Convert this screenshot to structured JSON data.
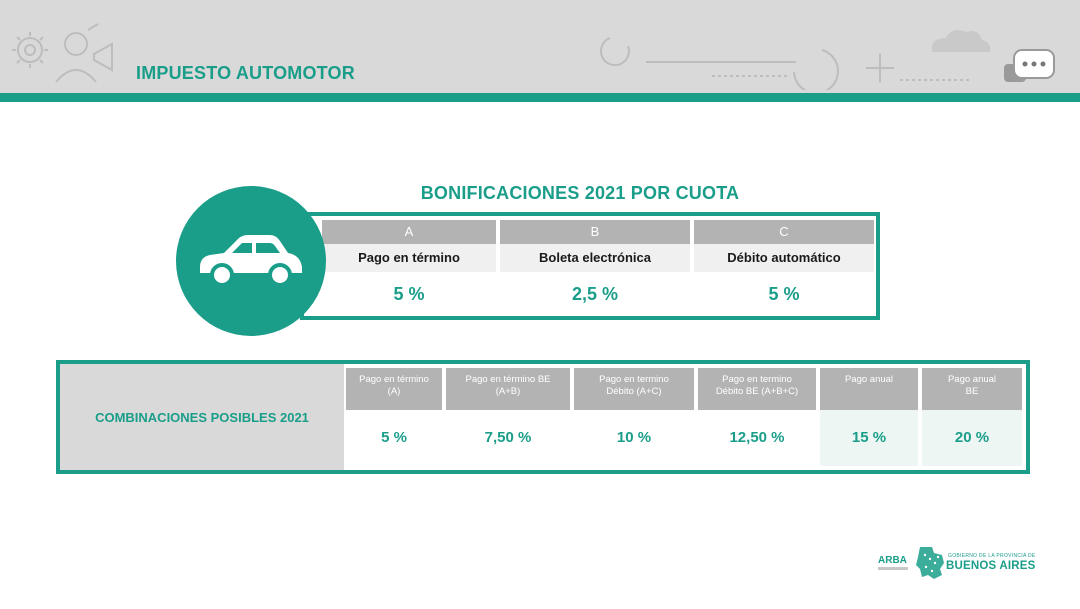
{
  "header": {
    "title": "IMPUESTO AUTOMOTOR"
  },
  "bonificaciones": {
    "title": "BONIFICACIONES 2021 POR CUOTA",
    "columns": [
      {
        "letter": "A",
        "label": "Pago en término",
        "value": "5 %"
      },
      {
        "letter": "B",
        "label": "Boleta electrónica",
        "value": "2,5 %"
      },
      {
        "letter": "C",
        "label": "Débito automático",
        "value": "5 %"
      }
    ]
  },
  "combinaciones": {
    "label": "COMBINACIONES POSIBLES 2021",
    "columns": [
      {
        "line1": "Pago en término",
        "line2": "(A)",
        "value": "5 %"
      },
      {
        "line1": "Pago en término BE",
        "line2": "(A+B)",
        "value": "7,50 %"
      },
      {
        "line1": "Pago en termino",
        "line2": "Débito (A+C)",
        "value": "10 %"
      },
      {
        "line1": "Pago en termino",
        "line2": "Débito BE (A+B+C)",
        "value": "12,50 %"
      },
      {
        "line1": "Pago anual",
        "line2": "",
        "value": "15 %"
      },
      {
        "line1": "Pago anual",
        "line2": "BE",
        "value": "20 %"
      }
    ]
  },
  "footer": {
    "arba": "ARBA",
    "gobierno": "GOBIERNO DE LA PROVINCIA DE",
    "buenos_aires": "BUENOS AIRES"
  },
  "colors": {
    "accent": "#1a9e8a",
    "header_bg": "#d9d9d9",
    "cell_header": "#b3b3b3"
  },
  "icons": [
    "gear-icon",
    "person-megaphone-icon",
    "progress-circle-icon",
    "plus-icon",
    "cloud-icon",
    "chat-bubbles-icon",
    "car-icon",
    "province-map-icon"
  ]
}
